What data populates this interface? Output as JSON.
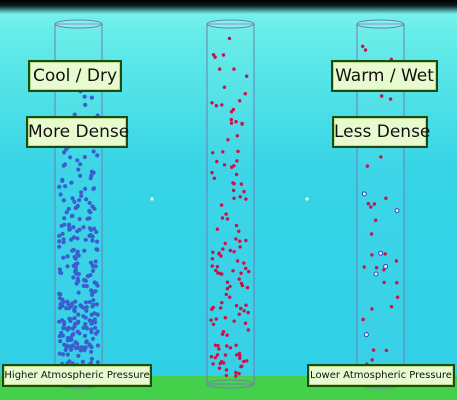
{
  "labels": {
    "cool_dry": "Cool / Dry",
    "more_dense": "More Dense",
    "warm_wet": "Warm / Wet",
    "less_dense": "Less Dense",
    "higher_pressure": "Higher Atmospheric Pressure",
    "lower_pressure": "Lower Atmospheric Pressure"
  },
  "columns": [
    {
      "id": "left",
      "particle_color": "#3a5fcd",
      "particle_count": 300
    },
    {
      "id": "center",
      "particle_color": "#c8124a",
      "particle_count": 130
    },
    {
      "id": "right",
      "particle_color": "#c8124a",
      "particle_count": 40,
      "secondary_particle_color": "#2f49b8",
      "secondary_count": 6
    }
  ],
  "colors": {
    "sky": "#36d4e6",
    "ground": "#44d04a",
    "label_bg": "#e8fbcf",
    "label_border": "#1e4a12"
  }
}
